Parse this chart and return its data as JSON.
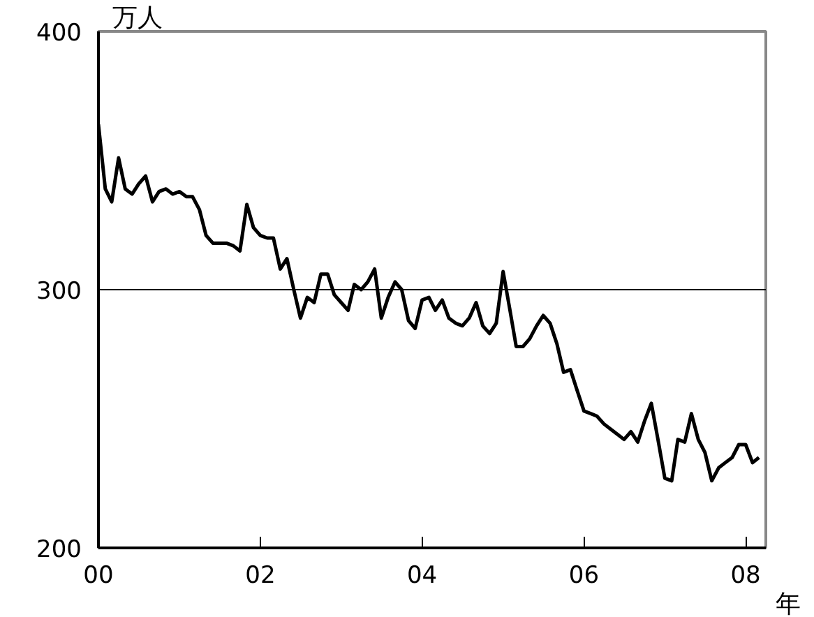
{
  "chart_data": {
    "type": "line",
    "ylabel": "万人",
    "xlabel": "年",
    "x": [
      "2000-01",
      "2000-02",
      "2000-03",
      "2000-04",
      "2000-05",
      "2000-06",
      "2000-07",
      "2000-08",
      "2000-09",
      "2000-10",
      "2000-11",
      "2000-12",
      "2001-01",
      "2001-02",
      "2001-03",
      "2001-04",
      "2001-05",
      "2001-06",
      "2001-07",
      "2001-08",
      "2001-09",
      "2001-10",
      "2001-11",
      "2001-12",
      "2002-01",
      "2002-02",
      "2002-03",
      "2002-04",
      "2002-05",
      "2002-06",
      "2002-07",
      "2002-08",
      "2002-09",
      "2002-10",
      "2002-11",
      "2002-12",
      "2003-01",
      "2003-02",
      "2003-03",
      "2003-04",
      "2003-05",
      "2003-06",
      "2003-07",
      "2003-08",
      "2003-09",
      "2003-10",
      "2003-11",
      "2003-12",
      "2004-01",
      "2004-02",
      "2004-03",
      "2004-04",
      "2004-05",
      "2004-06",
      "2004-07",
      "2004-08",
      "2004-09",
      "2004-10",
      "2004-11",
      "2004-12",
      "2005-01",
      "2005-02",
      "2005-03",
      "2005-04",
      "2005-05",
      "2005-06",
      "2005-07",
      "2005-08",
      "2005-09",
      "2005-10",
      "2005-11",
      "2005-12",
      "2006-01",
      "2006-02",
      "2006-03",
      "2006-04",
      "2006-05",
      "2006-06",
      "2006-07",
      "2006-08",
      "2006-09",
      "2006-10",
      "2006-11",
      "2006-12",
      "2007-01",
      "2007-02",
      "2007-03",
      "2007-04",
      "2007-05",
      "2007-06",
      "2007-07",
      "2007-08",
      "2007-09",
      "2007-10",
      "2007-11",
      "2007-12",
      "2008-01",
      "2008-02",
      "2008-03"
    ],
    "series": [
      {
        "color": "#000000",
        "values": [
          364,
          339,
          334,
          351,
          339,
          337,
          341,
          344,
          334,
          338,
          339,
          337,
          338,
          336,
          336,
          331,
          321,
          318,
          318,
          318,
          317,
          315,
          333,
          324,
          321,
          320,
          320,
          308,
          312,
          300,
          289,
          297,
          295,
          306,
          306,
          298,
          295,
          292,
          302,
          300,
          303,
          308,
          289,
          297,
          303,
          300,
          288,
          285,
          296,
          297,
          292,
          296,
          289,
          287,
          286,
          289,
          295,
          286,
          283,
          287,
          307,
          292,
          278,
          278,
          281,
          286,
          290,
          287,
          279,
          268,
          269,
          261,
          253,
          252,
          251,
          248,
          246,
          244,
          242,
          245,
          241,
          249,
          256,
          242,
          227,
          226,
          242,
          241,
          252,
          242,
          237,
          226,
          231,
          233,
          235,
          240,
          240,
          233,
          235
        ]
      }
    ],
    "xlim": [
      "2000-01-01",
      "2008-04-01"
    ],
    "xticks": [
      {
        "value": "2000-01-01",
        "label": "00"
      },
      {
        "value": "2002-01-01",
        "label": "02"
      },
      {
        "value": "2004-01-01",
        "label": "04"
      },
      {
        "value": "2006-01-01",
        "label": "06"
      },
      {
        "value": "2008-01-01",
        "label": "08"
      }
    ],
    "ylim": [
      200,
      400
    ],
    "yticks": [
      200,
      300,
      400
    ],
    "grid": "y",
    "marker": "none",
    "line_style": "solid"
  }
}
